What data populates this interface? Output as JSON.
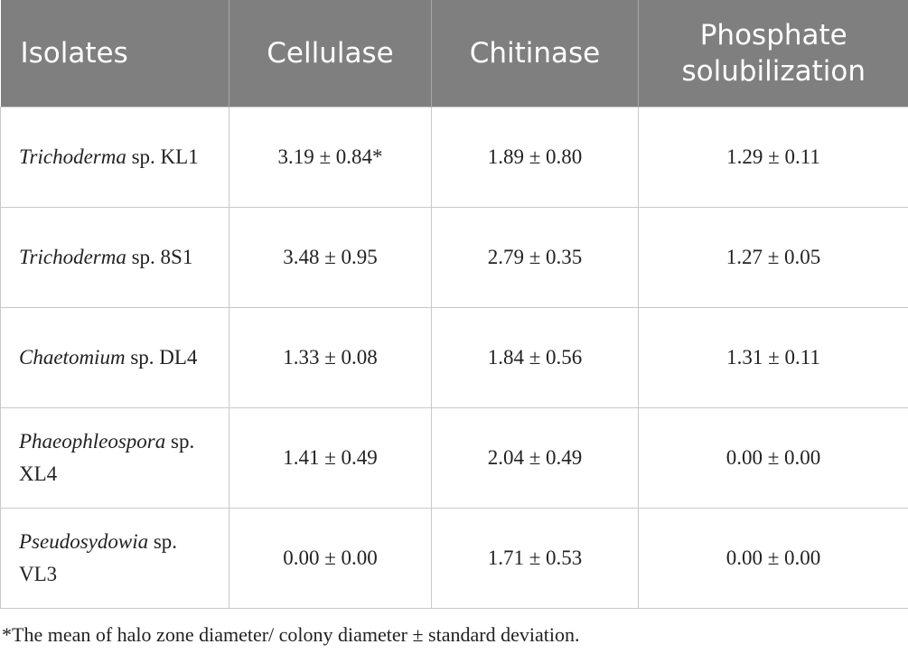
{
  "table": {
    "header": [
      "Isolates",
      "Cellulase",
      "Chitinase",
      "Phosphate solubilization"
    ],
    "rows": [
      [
        {
          "genus": "Trichoderma",
          "rest": "sp. KL1"
        },
        "3.19 ± 0.84*",
        "1.89 ± 0.80",
        "1.29 ± 0.11"
      ],
      [
        {
          "genus": "Trichoderma",
          "rest": "sp. 8S1"
        },
        "3.48 ± 0.95",
        "2.79 ± 0.35",
        "1.27 ± 0.05"
      ],
      [
        {
          "genus": "Chaetomium",
          "rest": "sp. DL4"
        },
        "1.33 ± 0.08",
        "1.84 ± 0.56",
        "1.31 ± 0.11"
      ],
      [
        {
          "genus": "Phaeophleospora",
          "rest": "sp. XL4"
        },
        "1.41 ± 0.49",
        "2.04 ± 0.49",
        "0.00 ± 0.00"
      ],
      [
        {
          "genus": "Pseudosydowia",
          "rest": "sp. VL3"
        },
        "0.00 ± 0.00",
        "1.71 ± 0.53",
        "0.00 ± 0.00"
      ]
    ],
    "footnote": "*The mean of halo zone diameter/ colony diameter ± standard deviation."
  }
}
